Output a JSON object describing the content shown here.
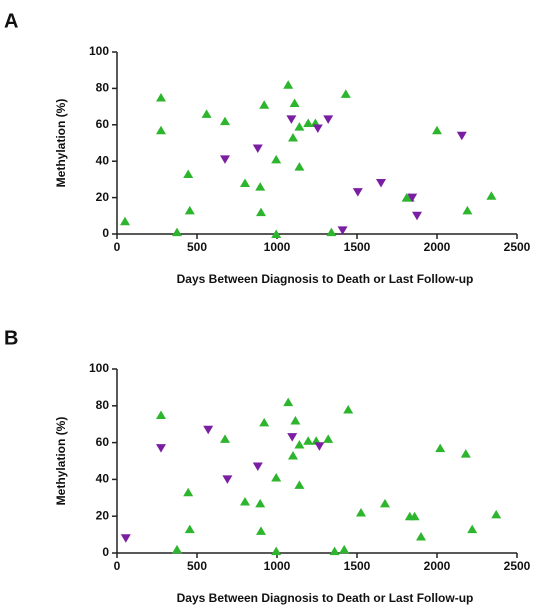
{
  "chart_data": [
    {
      "type": "scatter",
      "panel": "A",
      "xlabel": "Days Between Diagnosis to Death or Last Follow-up",
      "ylabel": "Methylation (%)",
      "xlim": [
        0,
        2500
      ],
      "ylim": [
        0,
        100
      ],
      "xticks": [
        0,
        500,
        1000,
        1500,
        2000,
        2500
      ],
      "yticks": [
        0,
        20,
        40,
        60,
        80,
        100
      ],
      "series": [
        {
          "color": "#2db52d",
          "marker": "triangle-up",
          "x": [
            50,
            275,
            275,
            375,
            445,
            455,
            560,
            675,
            800,
            895,
            900,
            920,
            995,
            995,
            1070,
            1110,
            1100,
            1140,
            1140,
            1195,
            1240,
            1340,
            1430,
            1810,
            1830,
            2000,
            2190,
            2340
          ],
          "values": [
            7,
            75,
            57,
            1,
            33,
            13,
            66,
            62,
            28,
            26,
            12,
            71,
            41,
            0,
            82,
            72,
            53,
            59,
            37,
            61,
            61,
            1,
            77,
            20,
            20,
            57,
            13,
            21
          ]
        },
        {
          "color": "#7b1fa2",
          "marker": "triangle-down",
          "x": [
            675,
            880,
            1090,
            1255,
            1320,
            1410,
            1505,
            1650,
            1845,
            1875,
            2155
          ],
          "values": [
            41,
            47,
            63,
            58,
            63,
            2,
            23,
            28,
            20,
            10,
            54
          ]
        }
      ]
    },
    {
      "type": "scatter",
      "panel": "B",
      "xlabel": "Days Between Diagnosis to Death or Last Follow-up",
      "ylabel": "Methylation (%)",
      "xlim": [
        0,
        2500
      ],
      "ylim": [
        0,
        100
      ],
      "xticks": [
        0,
        500,
        1000,
        1500,
        2000,
        2500
      ],
      "yticks": [
        0,
        20,
        40,
        60,
        80,
        100
      ],
      "series": [
        {
          "color": "#2db52d",
          "marker": "triangle-up",
          "x": [
            275,
            375,
            445,
            455,
            675,
            800,
            895,
            900,
            920,
            995,
            995,
            1070,
            1115,
            1100,
            1140,
            1140,
            1195,
            1245,
            1320,
            1360,
            1420,
            1445,
            1525,
            1675,
            1830,
            1860,
            1900,
            2020,
            2180,
            2220,
            2370
          ],
          "values": [
            75,
            2,
            33,
            13,
            62,
            28,
            27,
            12,
            71,
            41,
            1,
            82,
            72,
            53,
            59,
            37,
            61,
            61,
            62,
            1,
            2,
            78,
            22,
            27,
            20,
            20,
            9,
            57,
            54,
            13,
            21
          ]
        },
        {
          "color": "#7b1fa2",
          "marker": "triangle-down",
          "x": [
            55,
            275,
            570,
            690,
            880,
            1095,
            1265
          ],
          "values": [
            8,
            57,
            67,
            40,
            47,
            63,
            58
          ]
        }
      ]
    }
  ]
}
